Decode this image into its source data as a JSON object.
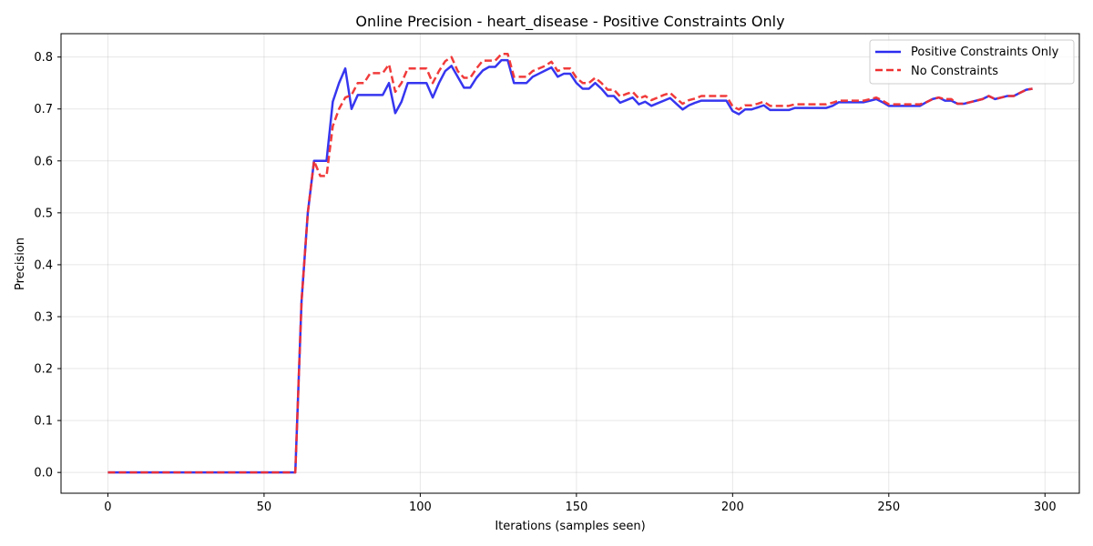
{
  "chart_data": {
    "type": "line",
    "title": "Online Precision - heart_disease - Positive Constraints Only",
    "xlabel": "Iterations (samples seen)",
    "ylabel": "Precision",
    "xlim": [
      -15,
      311
    ],
    "ylim": [
      -0.04,
      0.845
    ],
    "xticks": [
      0,
      50,
      100,
      150,
      200,
      250,
      300
    ],
    "yticks": [
      0.0,
      0.1,
      0.2,
      0.3,
      0.4,
      0.5,
      0.6,
      0.7,
      0.8
    ],
    "xtick_labels": [
      "0",
      "50",
      "100",
      "150",
      "200",
      "250",
      "300"
    ],
    "ytick_labels": [
      "0.0",
      "0.1",
      "0.2",
      "0.3",
      "0.4",
      "0.5",
      "0.6",
      "0.7",
      "0.8"
    ],
    "grid": true,
    "legend_position": "top-right",
    "series": [
      {
        "name": "Positive Constraints Only",
        "color": "#2b2bef",
        "style": "solid",
        "points": [
          [
            0,
            0
          ],
          [
            60,
            0
          ],
          [
            62,
            0.33
          ],
          [
            64,
            0.5
          ],
          [
            66,
            0.6
          ],
          [
            68,
            0.6
          ],
          [
            70,
            0.6
          ],
          [
            72,
            0.714
          ],
          [
            74,
            0.75
          ],
          [
            76,
            0.778
          ],
          [
            78,
            0.7
          ],
          [
            80,
            0.727
          ],
          [
            82,
            0.727
          ],
          [
            84,
            0.727
          ],
          [
            86,
            0.727
          ],
          [
            88,
            0.727
          ],
          [
            90,
            0.75
          ],
          [
            92,
            0.692
          ],
          [
            94,
            0.714
          ],
          [
            96,
            0.75
          ],
          [
            98,
            0.75
          ],
          [
            100,
            0.75
          ],
          [
            102,
            0.75
          ],
          [
            104,
            0.722
          ],
          [
            106,
            0.75
          ],
          [
            108,
            0.773
          ],
          [
            110,
            0.783
          ],
          [
            112,
            0.762
          ],
          [
            114,
            0.741
          ],
          [
            116,
            0.741
          ],
          [
            118,
            0.76
          ],
          [
            120,
            0.774
          ],
          [
            122,
            0.781
          ],
          [
            124,
            0.781
          ],
          [
            126,
            0.794
          ],
          [
            128,
            0.794
          ],
          [
            130,
            0.75
          ],
          [
            132,
            0.75
          ],
          [
            134,
            0.75
          ],
          [
            136,
            0.762
          ],
          [
            138,
            0.768
          ],
          [
            140,
            0.774
          ],
          [
            142,
            0.78
          ],
          [
            144,
            0.762
          ],
          [
            146,
            0.768
          ],
          [
            148,
            0.768
          ],
          [
            150,
            0.75
          ],
          [
            152,
            0.739
          ],
          [
            154,
            0.739
          ],
          [
            156,
            0.75
          ],
          [
            158,
            0.739
          ],
          [
            160,
            0.725
          ],
          [
            162,
            0.725
          ],
          [
            164,
            0.712
          ],
          [
            166,
            0.717
          ],
          [
            168,
            0.722
          ],
          [
            170,
            0.709
          ],
          [
            172,
            0.714
          ],
          [
            174,
            0.706
          ],
          [
            176,
            0.711
          ],
          [
            178,
            0.716
          ],
          [
            180,
            0.721
          ],
          [
            182,
            0.71
          ],
          [
            184,
            0.699
          ],
          [
            186,
            0.707
          ],
          [
            188,
            0.712
          ],
          [
            190,
            0.716
          ],
          [
            192,
            0.716
          ],
          [
            194,
            0.716
          ],
          [
            196,
            0.716
          ],
          [
            198,
            0.716
          ],
          [
            200,
            0.696
          ],
          [
            202,
            0.69
          ],
          [
            204,
            0.699
          ],
          [
            206,
            0.699
          ],
          [
            208,
            0.703
          ],
          [
            210,
            0.707
          ],
          [
            212,
            0.698
          ],
          [
            214,
            0.698
          ],
          [
            216,
            0.698
          ],
          [
            218,
            0.698
          ],
          [
            220,
            0.702
          ],
          [
            222,
            0.702
          ],
          [
            224,
            0.702
          ],
          [
            226,
            0.702
          ],
          [
            228,
            0.702
          ],
          [
            230,
            0.702
          ],
          [
            232,
            0.706
          ],
          [
            234,
            0.713
          ],
          [
            236,
            0.713
          ],
          [
            238,
            0.713
          ],
          [
            240,
            0.713
          ],
          [
            242,
            0.713
          ],
          [
            244,
            0.716
          ],
          [
            246,
            0.719
          ],
          [
            248,
            0.713
          ],
          [
            250,
            0.706
          ],
          [
            252,
            0.706
          ],
          [
            254,
            0.706
          ],
          [
            256,
            0.706
          ],
          [
            258,
            0.706
          ],
          [
            260,
            0.706
          ],
          [
            262,
            0.713
          ],
          [
            264,
            0.719
          ],
          [
            266,
            0.722
          ],
          [
            268,
            0.716
          ],
          [
            270,
            0.716
          ],
          [
            272,
            0.71
          ],
          [
            274,
            0.71
          ],
          [
            276,
            0.713
          ],
          [
            278,
            0.716
          ],
          [
            280,
            0.719
          ],
          [
            282,
            0.725
          ],
          [
            284,
            0.719
          ],
          [
            286,
            0.722
          ],
          [
            288,
            0.725
          ],
          [
            290,
            0.725
          ],
          [
            292,
            0.731
          ],
          [
            294,
            0.737
          ],
          [
            296,
            0.739
          ]
        ]
      },
      {
        "name": "No Constraints",
        "color": "#f03030",
        "style": "dashed",
        "points": [
          [
            0,
            0
          ],
          [
            60,
            0
          ],
          [
            62,
            0.33
          ],
          [
            64,
            0.5
          ],
          [
            66,
            0.6
          ],
          [
            68,
            0.571
          ],
          [
            70,
            0.571
          ],
          [
            72,
            0.667
          ],
          [
            74,
            0.7
          ],
          [
            76,
            0.722
          ],
          [
            78,
            0.727
          ],
          [
            80,
            0.75
          ],
          [
            82,
            0.75
          ],
          [
            84,
            0.769
          ],
          [
            86,
            0.769
          ],
          [
            88,
            0.769
          ],
          [
            90,
            0.786
          ],
          [
            92,
            0.733
          ],
          [
            94,
            0.75
          ],
          [
            96,
            0.778
          ],
          [
            98,
            0.778
          ],
          [
            100,
            0.778
          ],
          [
            102,
            0.778
          ],
          [
            104,
            0.75
          ],
          [
            106,
            0.773
          ],
          [
            108,
            0.792
          ],
          [
            110,
            0.8
          ],
          [
            112,
            0.773
          ],
          [
            114,
            0.76
          ],
          [
            116,
            0.76
          ],
          [
            118,
            0.778
          ],
          [
            120,
            0.793
          ],
          [
            122,
            0.793
          ],
          [
            124,
            0.793
          ],
          [
            126,
            0.806
          ],
          [
            128,
            0.806
          ],
          [
            130,
            0.762
          ],
          [
            132,
            0.762
          ],
          [
            134,
            0.762
          ],
          [
            136,
            0.773
          ],
          [
            138,
            0.778
          ],
          [
            140,
            0.783
          ],
          [
            142,
            0.791
          ],
          [
            144,
            0.773
          ],
          [
            146,
            0.778
          ],
          [
            148,
            0.778
          ],
          [
            150,
            0.76
          ],
          [
            152,
            0.75
          ],
          [
            154,
            0.75
          ],
          [
            156,
            0.76
          ],
          [
            158,
            0.75
          ],
          [
            160,
            0.737
          ],
          [
            162,
            0.737
          ],
          [
            164,
            0.724
          ],
          [
            166,
            0.729
          ],
          [
            168,
            0.733
          ],
          [
            170,
            0.72
          ],
          [
            172,
            0.725
          ],
          [
            174,
            0.717
          ],
          [
            176,
            0.722
          ],
          [
            178,
            0.727
          ],
          [
            180,
            0.731
          ],
          [
            182,
            0.72
          ],
          [
            184,
            0.71
          ],
          [
            186,
            0.717
          ],
          [
            188,
            0.72
          ],
          [
            190,
            0.725
          ],
          [
            192,
            0.725
          ],
          [
            194,
            0.725
          ],
          [
            196,
            0.725
          ],
          [
            198,
            0.725
          ],
          [
            200,
            0.705
          ],
          [
            202,
            0.699
          ],
          [
            204,
            0.707
          ],
          [
            206,
            0.707
          ],
          [
            208,
            0.71
          ],
          [
            210,
            0.714
          ],
          [
            212,
            0.706
          ],
          [
            214,
            0.706
          ],
          [
            216,
            0.706
          ],
          [
            218,
            0.706
          ],
          [
            220,
            0.709
          ],
          [
            222,
            0.709
          ],
          [
            224,
            0.709
          ],
          [
            226,
            0.709
          ],
          [
            228,
            0.709
          ],
          [
            230,
            0.709
          ],
          [
            232,
            0.712
          ],
          [
            234,
            0.716
          ],
          [
            236,
            0.716
          ],
          [
            238,
            0.716
          ],
          [
            240,
            0.716
          ],
          [
            242,
            0.716
          ],
          [
            244,
            0.719
          ],
          [
            246,
            0.722
          ],
          [
            248,
            0.716
          ],
          [
            250,
            0.709
          ],
          [
            252,
            0.709
          ],
          [
            254,
            0.709
          ],
          [
            256,
            0.709
          ],
          [
            258,
            0.709
          ],
          [
            260,
            0.709
          ],
          [
            262,
            0.713
          ],
          [
            264,
            0.719
          ],
          [
            266,
            0.722
          ],
          [
            268,
            0.719
          ],
          [
            270,
            0.719
          ],
          [
            272,
            0.71
          ],
          [
            274,
            0.71
          ],
          [
            276,
            0.713
          ],
          [
            278,
            0.716
          ],
          [
            280,
            0.719
          ],
          [
            282,
            0.725
          ],
          [
            284,
            0.719
          ],
          [
            286,
            0.722
          ],
          [
            288,
            0.725
          ],
          [
            290,
            0.725
          ],
          [
            292,
            0.731
          ],
          [
            294,
            0.737
          ],
          [
            296,
            0.739
          ]
        ]
      }
    ]
  }
}
